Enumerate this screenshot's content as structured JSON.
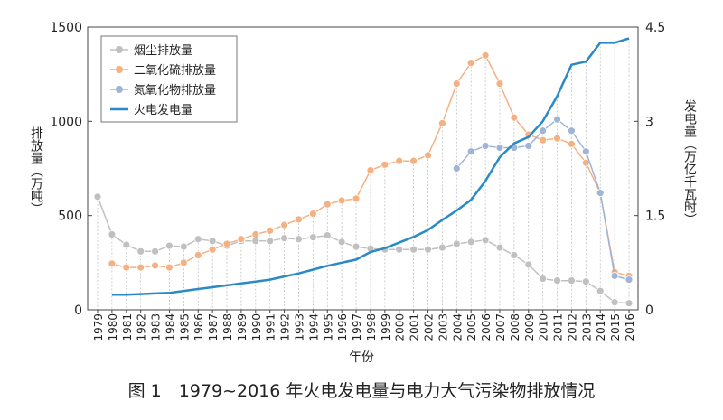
{
  "chart_data": {
    "type": "line",
    "x": [
      "1979",
      "1980",
      "1981",
      "1982",
      "1983",
      "1984",
      "1985",
      "1986",
      "1987",
      "1988",
      "1989",
      "1990",
      "1991",
      "1992",
      "1993",
      "1994",
      "1995",
      "1996",
      "1997",
      "1998",
      "1999",
      "2000",
      "2001",
      "2002",
      "2003",
      "2004",
      "2005",
      "2006",
      "2007",
      "2008",
      "2009",
      "2010",
      "2011",
      "2012",
      "2013",
      "2014",
      "2015",
      "2016"
    ],
    "xlabel": "年份",
    "ylabel_left": "排放量（万吨）",
    "ylabel_right": "发电量（万亿千瓦时）",
    "ylim_left": [
      0,
      1500
    ],
    "ylim_right": [
      0,
      4.5
    ],
    "yticks_left": [
      "0",
      "500",
      "1000",
      "1500"
    ],
    "yticks_right": [
      "0",
      "1.5",
      "3",
      "4.5"
    ],
    "legend_position": "top-left",
    "caption": "图 1　1979~2016 年火电发电量与电力大气污染物排放情况",
    "series": [
      {
        "name": "烟尘排放量",
        "axis": "left",
        "color": "#c0c0c0",
        "marker": true,
        "values": [
          600,
          400,
          345,
          310,
          310,
          340,
          335,
          375,
          365,
          340,
          365,
          365,
          365,
          380,
          375,
          385,
          395,
          360,
          335,
          325,
          320,
          320,
          320,
          320,
          330,
          350,
          360,
          370,
          330,
          290,
          240,
          165,
          155,
          155,
          150,
          100,
          40,
          35
        ]
      },
      {
        "name": "二氧化硫排放量",
        "axis": "left",
        "color": "#f4b183",
        "marker": true,
        "values": [
          null,
          245,
          225,
          225,
          235,
          225,
          250,
          290,
          320,
          350,
          375,
          400,
          420,
          450,
          480,
          510,
          560,
          580,
          590,
          740,
          770,
          790,
          790,
          820,
          990,
          1200,
          1310,
          1350,
          1200,
          1020,
          930,
          900,
          910,
          880,
          780,
          620,
          200,
          180
        ]
      },
      {
        "name": "氮氧化物排放量",
        "axis": "left",
        "color": "#9fb4d6",
        "marker": true,
        "values": [
          null,
          null,
          null,
          null,
          null,
          null,
          null,
          null,
          null,
          null,
          null,
          null,
          null,
          null,
          null,
          null,
          null,
          null,
          null,
          null,
          null,
          null,
          null,
          null,
          null,
          750,
          840,
          870,
          860,
          860,
          870,
          950,
          1010,
          950,
          840,
          620,
          180,
          160
        ]
      },
      {
        "name": "火电发电量",
        "axis": "right",
        "color": "#2a8ac6",
        "marker": false,
        "values": [
          null,
          0.24,
          0.24,
          0.25,
          0.26,
          0.27,
          0.3,
          0.33,
          0.36,
          0.39,
          0.42,
          0.45,
          0.48,
          0.53,
          0.58,
          0.64,
          0.7,
          0.75,
          0.8,
          0.92,
          0.98,
          1.07,
          1.16,
          1.27,
          1.43,
          1.58,
          1.75,
          2.05,
          2.43,
          2.65,
          2.75,
          3.0,
          3.4,
          3.9,
          3.95,
          4.25,
          4.25,
          4.32
        ]
      }
    ]
  }
}
